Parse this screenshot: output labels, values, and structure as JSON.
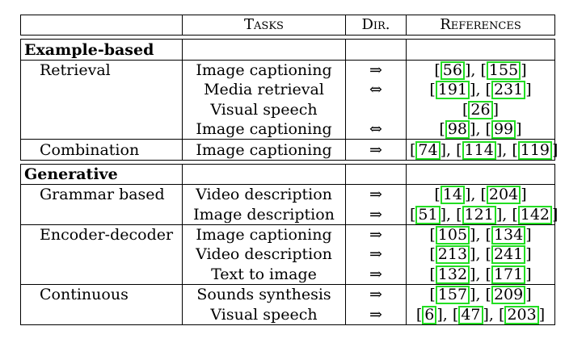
{
  "headers": [
    "",
    "Tasks",
    "Dir.",
    "References"
  ],
  "sections": [
    {
      "title": "Example-based",
      "groups": [
        {
          "category": "Retrieval",
          "rows": [
            {
              "task": "Image captioning",
              "dir": "⇒",
              "refs": [
                "56",
                "155"
              ]
            },
            {
              "task": "Media retrieval",
              "dir": "⇔",
              "refs": [
                "191",
                "231"
              ]
            },
            {
              "task": "Visual speech",
              "dir": "",
              "refs": [
                "26"
              ]
            },
            {
              "task": "Image captioning",
              "dir": "⇔",
              "refs": [
                "98",
                "99"
              ]
            }
          ]
        },
        {
          "category": "Combination",
          "rows": [
            {
              "task": "Image captioning",
              "dir": "⇒",
              "refs": [
                "74",
                "114",
                "119"
              ]
            }
          ]
        }
      ]
    },
    {
      "title": "Generative",
      "groups": [
        {
          "category": "Grammar based",
          "rows": [
            {
              "task": "Video description",
              "dir": "⇒",
              "refs": [
                "14",
                "204"
              ]
            },
            {
              "task": "Image description",
              "dir": "⇒",
              "refs": [
                "51",
                "121",
                "142"
              ]
            }
          ]
        },
        {
          "category": "Encoder-decoder",
          "rows": [
            {
              "task": "Image captioning",
              "dir": "⇒",
              "refs": [
                "105",
                "134"
              ]
            },
            {
              "task": "Video description",
              "dir": "⇒",
              "refs": [
                "213",
                "241"
              ]
            },
            {
              "task": "Text to image",
              "dir": "⇒",
              "refs": [
                "132",
                "171"
              ]
            }
          ]
        },
        {
          "category": "Continuous",
          "rows": [
            {
              "task": "Sounds synthesis",
              "dir": "⇒",
              "refs": [
                "157",
                "209"
              ]
            },
            {
              "task": "Visual speech",
              "dir": "⇒",
              "refs": [
                "6",
                "47",
                "203"
              ]
            }
          ]
        }
      ]
    }
  ]
}
